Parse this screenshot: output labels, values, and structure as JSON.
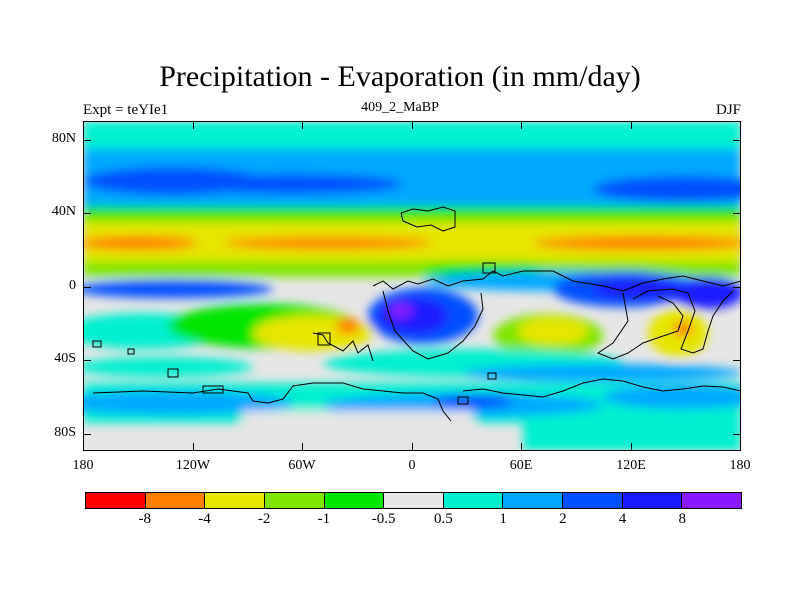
{
  "title": "Precipitation - Evaporation (in mm/day)",
  "subtitle_left": "Expt = teYIe1",
  "subtitle_center": "409_2_MaBP",
  "subtitle_right": "DJF",
  "axes": {
    "y_ticks": [
      "80N",
      "40N",
      "0",
      "40S",
      "80S"
    ],
    "x_ticks": [
      "180",
      "120W",
      "60W",
      "0",
      "60E",
      "120E",
      "180"
    ]
  },
  "colorbar": {
    "colors": [
      "#ff0000",
      "#ff8000",
      "#e6e600",
      "#80e600",
      "#00e600",
      "#e6e6e6",
      "#00f0d0",
      "#00a8ff",
      "#0050ff",
      "#1a1aff",
      "#8a1aff"
    ],
    "labels": [
      "-8",
      "-4",
      "-2",
      "-1",
      "-0.5",
      "0.5",
      "1",
      "2",
      "4",
      "8"
    ]
  },
  "palette": {
    "cyan": "#00f0d0",
    "light_blue": "#00a8ff",
    "blue": "#0050ff",
    "dark_blue": "#1a1aff",
    "purple": "#8a1aff",
    "gray": "#e6e6e6",
    "green": "#00e600",
    "lime": "#80e600",
    "yellow": "#e6e600",
    "orange": "#ff8000"
  }
}
